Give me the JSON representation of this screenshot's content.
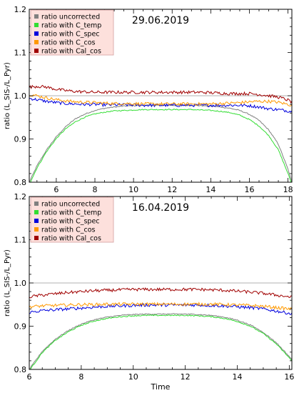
{
  "chart_data": [
    {
      "type": "line",
      "title": "29.06.2019",
      "xlabel": "",
      "ylabel": "ratio (L_SIS-/L_Pyr)",
      "xlim": [
        4.6,
        18.2
      ],
      "ylim": [
        0.8,
        1.2
      ],
      "xticks": [
        6,
        8,
        10,
        12,
        14,
        16,
        18
      ],
      "yticks": [
        0.8,
        0.9,
        1.0,
        1.1,
        1.2
      ],
      "legend_position": "top-left",
      "reference_line": 1.0,
      "x": [
        4.6,
        5.0,
        5.5,
        6.0,
        6.5,
        7.0,
        7.5,
        8.0,
        8.5,
        9.0,
        9.5,
        10.0,
        10.5,
        11.0,
        11.5,
        12.0,
        12.5,
        13.0,
        13.5,
        14.0,
        14.5,
        15.0,
        15.5,
        16.0,
        16.5,
        17.0,
        17.5,
        18.0,
        18.2
      ],
      "series": [
        {
          "name": "ratio uncorrected",
          "color": "#808080",
          "values": [
            0.8,
            0.838,
            0.875,
            0.905,
            0.929,
            0.947,
            0.958,
            0.966,
            0.971,
            0.974,
            0.976,
            0.977,
            0.978,
            0.978,
            0.978,
            0.978,
            0.978,
            0.978,
            0.977,
            0.976,
            0.974,
            0.971,
            0.966,
            0.957,
            0.943,
            0.921,
            0.888,
            0.83,
            0.8
          ]
        },
        {
          "name": "ratio with C_temp",
          "color": "#33dd33",
          "values": [
            0.795,
            0.833,
            0.871,
            0.901,
            0.924,
            0.94,
            0.951,
            0.958,
            0.962,
            0.965,
            0.966,
            0.967,
            0.968,
            0.968,
            0.968,
            0.968,
            0.968,
            0.968,
            0.967,
            0.966,
            0.964,
            0.961,
            0.955,
            0.945,
            0.93,
            0.908,
            0.875,
            0.82,
            0.795
          ]
        },
        {
          "name": "ratio with C_spec",
          "color": "#0000dd",
          "values": [
            0.994,
            0.991,
            0.987,
            0.984,
            0.982,
            0.981,
            0.98,
            0.98,
            0.979,
            0.979,
            0.979,
            0.979,
            0.978,
            0.978,
            0.978,
            0.978,
            0.978,
            0.978,
            0.978,
            0.978,
            0.978,
            0.978,
            0.978,
            0.977,
            0.974,
            0.97,
            0.968,
            0.965,
            0.964
          ]
        },
        {
          "name": "ratio with C_cos",
          "color": "#ff9900",
          "values": [
            1.003,
            1.0,
            0.995,
            0.991,
            0.988,
            0.986,
            0.985,
            0.984,
            0.983,
            0.982,
            0.982,
            0.982,
            0.981,
            0.981,
            0.981,
            0.981,
            0.981,
            0.981,
            0.981,
            0.981,
            0.982,
            0.983,
            0.984,
            0.986,
            0.987,
            0.987,
            0.985,
            0.98,
            0.978
          ]
        },
        {
          "name": "ratio with Cal_cos",
          "color": "#a00000",
          "values": [
            1.02,
            1.022,
            1.02,
            1.015,
            1.012,
            1.01,
            1.009,
            1.008,
            1.008,
            1.008,
            1.008,
            1.008,
            1.008,
            1.008,
            1.008,
            1.008,
            1.008,
            1.008,
            1.008,
            1.007,
            1.006,
            1.005,
            1.005,
            1.005,
            1.003,
            1.0,
            0.997,
            0.99,
            0.985
          ]
        }
      ]
    },
    {
      "type": "line",
      "title": "16.04.2019",
      "xlabel": "Time",
      "ylabel": "ratio (L_SIS-/L_Pyr)",
      "xlim": [
        6.0,
        16.1
      ],
      "ylim": [
        0.8,
        1.2
      ],
      "xticks": [
        6,
        8,
        10,
        12,
        14,
        16
      ],
      "yticks": [
        0.8,
        0.9,
        1.0,
        1.1,
        1.2
      ],
      "legend_position": "top-left",
      "reference_line": 1.0,
      "x": [
        6.0,
        6.5,
        7.0,
        7.5,
        8.0,
        8.5,
        9.0,
        9.5,
        10.0,
        10.5,
        11.0,
        11.5,
        12.0,
        12.5,
        13.0,
        13.5,
        14.0,
        14.5,
        15.0,
        15.5,
        16.0,
        16.1
      ],
      "series": [
        {
          "name": "ratio uncorrected",
          "color": "#808080",
          "values": [
            0.8,
            0.842,
            0.87,
            0.89,
            0.905,
            0.915,
            0.921,
            0.925,
            0.927,
            0.928,
            0.928,
            0.928,
            0.928,
            0.927,
            0.925,
            0.921,
            0.914,
            0.903,
            0.886,
            0.862,
            0.83,
            0.822
          ]
        },
        {
          "name": "ratio with C_temp",
          "color": "#33dd33",
          "values": [
            0.797,
            0.839,
            0.867,
            0.887,
            0.902,
            0.912,
            0.918,
            0.922,
            0.924,
            0.925,
            0.925,
            0.925,
            0.925,
            0.924,
            0.922,
            0.918,
            0.911,
            0.9,
            0.883,
            0.859,
            0.827,
            0.819
          ]
        },
        {
          "name": "ratio with C_spec",
          "color": "#0000dd",
          "values": [
            0.932,
            0.936,
            0.938,
            0.94,
            0.942,
            0.944,
            0.946,
            0.947,
            0.948,
            0.949,
            0.949,
            0.949,
            0.949,
            0.949,
            0.948,
            0.947,
            0.945,
            0.943,
            0.94,
            0.935,
            0.93,
            0.928
          ]
        },
        {
          "name": "ratio with C_cos",
          "color": "#ff9900",
          "values": [
            0.945,
            0.947,
            0.948,
            0.949,
            0.95,
            0.95,
            0.951,
            0.951,
            0.951,
            0.951,
            0.951,
            0.951,
            0.951,
            0.951,
            0.951,
            0.95,
            0.949,
            0.948,
            0.946,
            0.943,
            0.94,
            0.939
          ]
        },
        {
          "name": "ratio with Cal_cos",
          "color": "#a00000",
          "values": [
            0.968,
            0.972,
            0.975,
            0.978,
            0.98,
            0.982,
            0.983,
            0.984,
            0.985,
            0.985,
            0.985,
            0.985,
            0.985,
            0.985,
            0.984,
            0.983,
            0.981,
            0.979,
            0.976,
            0.972,
            0.968,
            0.967
          ]
        }
      ]
    }
  ]
}
